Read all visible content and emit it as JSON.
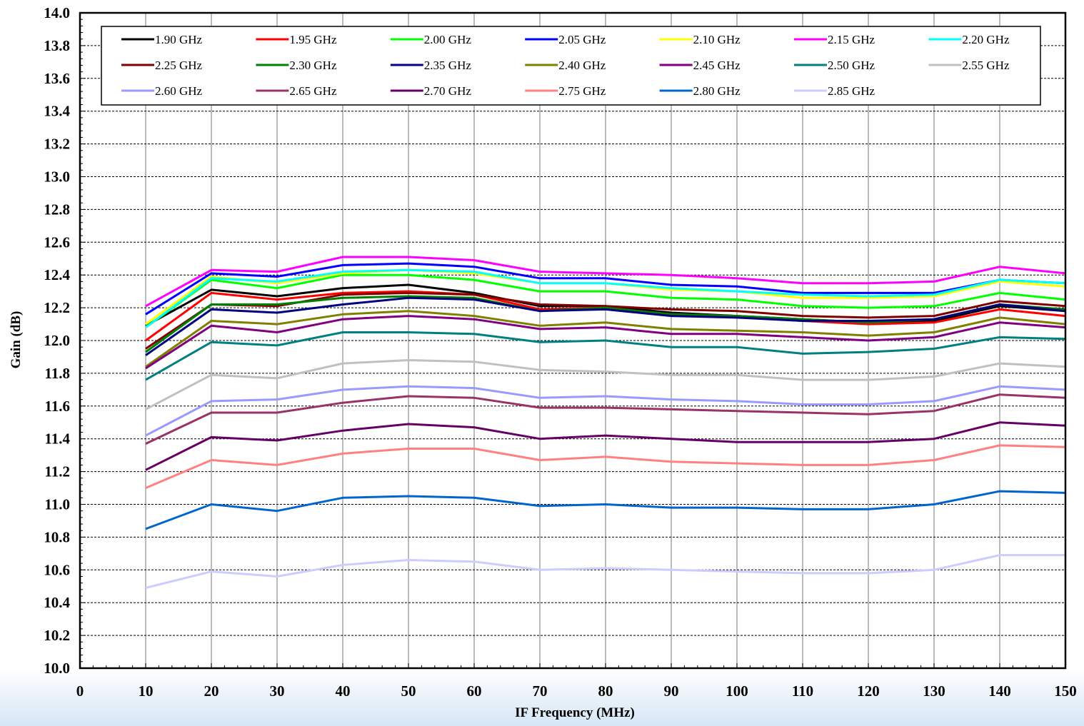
{
  "chart_data": {
    "type": "line",
    "title": "",
    "xlabel": "IF Frequency (MHz)",
    "ylabel": "Gain (dB)",
    "xlim": [
      0,
      150
    ],
    "ylim": [
      10.0,
      14.0
    ],
    "xticks": [
      0,
      10,
      20,
      30,
      40,
      50,
      60,
      70,
      80,
      90,
      100,
      110,
      120,
      130,
      140,
      150
    ],
    "yticks": [
      10.0,
      10.2,
      10.4,
      10.6,
      10.8,
      11.0,
      11.2,
      11.4,
      11.6,
      11.8,
      12.0,
      12.2,
      12.4,
      12.6,
      12.8,
      13.0,
      13.2,
      13.4,
      13.6,
      13.8,
      14.0
    ],
    "xtick_labels": [
      "0",
      "10",
      "20",
      "30",
      "40",
      "50",
      "60",
      "70",
      "80",
      "90",
      "100",
      "110",
      "120",
      "130",
      "140",
      "150"
    ],
    "ytick_labels": [
      "10.0",
      "10.2",
      "10.4",
      "10.6",
      "10.8",
      "11.0",
      "11.2",
      "11.4",
      "11.6",
      "11.8",
      "12.0",
      "12.2",
      "12.4",
      "12.6",
      "12.8",
      "13.0",
      "13.2",
      "13.4",
      "13.6",
      "13.8",
      "14.0"
    ],
    "grid": "horizontal dashed, vertical solid",
    "legend_position": "top, inside plot",
    "x": [
      10,
      20,
      30,
      40,
      50,
      60,
      70,
      80,
      90,
      100,
      110,
      120,
      130,
      140,
      150
    ],
    "series": [
      {
        "name": "1.90 GHz",
        "color": "#000000",
        "values": [
          12.09,
          12.31,
          12.27,
          12.32,
          12.34,
          12.29,
          12.21,
          12.21,
          12.17,
          12.15,
          12.13,
          12.11,
          12.12,
          12.21,
          12.18
        ]
      },
      {
        "name": "1.95 GHz",
        "color": "#ff0000",
        "values": [
          12.0,
          12.29,
          12.25,
          12.29,
          12.3,
          12.28,
          12.19,
          12.2,
          12.16,
          12.15,
          12.12,
          12.1,
          12.11,
          12.19,
          12.15
        ]
      },
      {
        "name": "2.00 GHz",
        "color": "#00ff00",
        "values": [
          12.08,
          12.37,
          12.32,
          12.4,
          12.4,
          12.37,
          12.3,
          12.3,
          12.26,
          12.25,
          12.21,
          12.2,
          12.21,
          12.29,
          12.25
        ]
      },
      {
        "name": "2.05 GHz",
        "color": "#0000ff",
        "values": [
          12.16,
          12.41,
          12.39,
          12.46,
          12.47,
          12.45,
          12.38,
          12.38,
          12.34,
          12.33,
          12.29,
          12.29,
          12.29,
          12.37,
          12.35
        ]
      },
      {
        "name": "2.10 GHz",
        "color": "#ffff00",
        "values": [
          12.1,
          12.39,
          12.35,
          12.41,
          12.43,
          12.41,
          12.35,
          12.35,
          12.31,
          12.3,
          12.26,
          12.26,
          12.27,
          12.36,
          12.33
        ]
      },
      {
        "name": "2.15 GHz",
        "color": "#ff00ff",
        "values": [
          12.21,
          12.43,
          12.42,
          12.51,
          12.51,
          12.49,
          12.42,
          12.41,
          12.4,
          12.38,
          12.35,
          12.35,
          12.36,
          12.45,
          12.41
        ]
      },
      {
        "name": "2.20 GHz",
        "color": "#00ffff",
        "values": [
          12.08,
          12.38,
          12.36,
          12.42,
          12.43,
          12.42,
          12.35,
          12.35,
          12.32,
          12.3,
          12.28,
          12.27,
          12.28,
          12.37,
          12.35
        ]
      },
      {
        "name": "2.25 GHz",
        "color": "#800000",
        "values": [
          11.95,
          12.22,
          12.21,
          12.28,
          12.29,
          12.28,
          12.22,
          12.21,
          12.19,
          12.18,
          12.15,
          12.14,
          12.15,
          12.24,
          12.21
        ]
      },
      {
        "name": "2.30 GHz",
        "color": "#008000",
        "values": [
          11.93,
          12.22,
          12.22,
          12.26,
          12.27,
          12.26,
          12.18,
          12.2,
          12.16,
          12.15,
          12.13,
          12.11,
          12.13,
          12.22,
          12.19
        ]
      },
      {
        "name": "2.35 GHz",
        "color": "#000080",
        "values": [
          11.91,
          12.19,
          12.17,
          12.22,
          12.26,
          12.25,
          12.18,
          12.19,
          12.15,
          12.14,
          12.12,
          12.12,
          12.13,
          12.22,
          12.18
        ]
      },
      {
        "name": "2.40 GHz",
        "color": "#808000",
        "values": [
          11.84,
          12.12,
          12.1,
          12.16,
          12.18,
          12.15,
          12.09,
          12.11,
          12.07,
          12.06,
          12.05,
          12.03,
          12.05,
          12.14,
          12.1
        ]
      },
      {
        "name": "2.45 GHz",
        "color": "#800080",
        "values": [
          11.83,
          12.09,
          12.05,
          12.13,
          12.15,
          12.13,
          12.07,
          12.08,
          12.04,
          12.04,
          12.02,
          12.0,
          12.02,
          12.11,
          12.08
        ]
      },
      {
        "name": "2.50 GHz",
        "color": "#008080",
        "values": [
          11.76,
          11.99,
          11.97,
          12.05,
          12.05,
          12.04,
          11.99,
          12.0,
          11.96,
          11.96,
          11.92,
          11.93,
          11.95,
          12.02,
          12.01
        ]
      },
      {
        "name": "2.55 GHz",
        "color": "#c0c0c0",
        "values": [
          11.58,
          11.79,
          11.77,
          11.86,
          11.88,
          11.87,
          11.82,
          11.81,
          11.79,
          11.79,
          11.76,
          11.76,
          11.78,
          11.86,
          11.84
        ]
      },
      {
        "name": "2.60 GHz",
        "color": "#9999ff",
        "values": [
          11.42,
          11.63,
          11.64,
          11.7,
          11.72,
          11.71,
          11.65,
          11.66,
          11.64,
          11.63,
          11.61,
          11.61,
          11.63,
          11.72,
          11.7
        ]
      },
      {
        "name": "2.65 GHz",
        "color": "#993366",
        "values": [
          11.37,
          11.56,
          11.56,
          11.62,
          11.66,
          11.65,
          11.59,
          11.59,
          11.58,
          11.57,
          11.56,
          11.55,
          11.57,
          11.67,
          11.65
        ]
      },
      {
        "name": "2.70 GHz",
        "color": "#660066",
        "values": [
          11.21,
          11.41,
          11.39,
          11.45,
          11.49,
          11.47,
          11.4,
          11.42,
          11.4,
          11.38,
          11.38,
          11.38,
          11.4,
          11.5,
          11.48
        ]
      },
      {
        "name": "2.75 GHz",
        "color": "#ff8080",
        "values": [
          11.1,
          11.27,
          11.24,
          11.31,
          11.34,
          11.34,
          11.27,
          11.29,
          11.26,
          11.25,
          11.24,
          11.24,
          11.27,
          11.36,
          11.35
        ]
      },
      {
        "name": "2.80 GHz",
        "color": "#0066cc",
        "values": [
          10.85,
          11.0,
          10.96,
          11.04,
          11.05,
          11.04,
          10.99,
          11.0,
          10.98,
          10.98,
          10.97,
          10.97,
          11.0,
          11.08,
          11.07
        ]
      },
      {
        "name": "2.85 GHz",
        "color": "#ccccff",
        "values": [
          10.49,
          10.59,
          10.56,
          10.63,
          10.66,
          10.65,
          10.6,
          10.61,
          10.6,
          10.59,
          10.58,
          10.58,
          10.6,
          10.69,
          10.69
        ]
      }
    ]
  }
}
